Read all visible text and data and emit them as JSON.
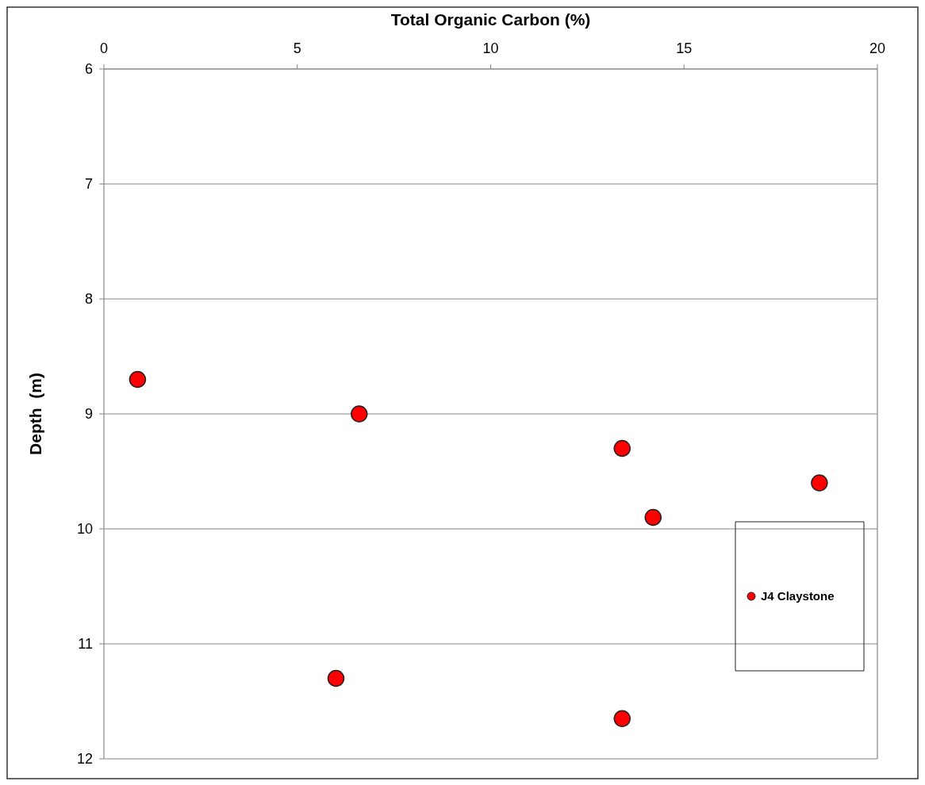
{
  "chart_data": {
    "type": "scatter",
    "xlabel": "Total Organic Carbon (%)",
    "ylabel": "Depth  (m)",
    "xlim": [
      0,
      20
    ],
    "xticks": [
      0,
      5,
      10,
      15,
      20
    ],
    "ylim": [
      12,
      6
    ],
    "yticks": [
      6,
      7,
      8,
      9,
      10,
      11,
      12
    ],
    "grid": "y",
    "legend": "right",
    "marker": "circle",
    "series": [
      {
        "name": "J4 Claystone",
        "color": "#ff0000",
        "x": [
          0.87,
          6.6,
          13.4,
          18.5,
          14.2,
          6.0,
          13.4
        ],
        "values": [
          8.7,
          9.0,
          9.3,
          9.6,
          9.9,
          11.3,
          11.65
        ]
      }
    ]
  }
}
